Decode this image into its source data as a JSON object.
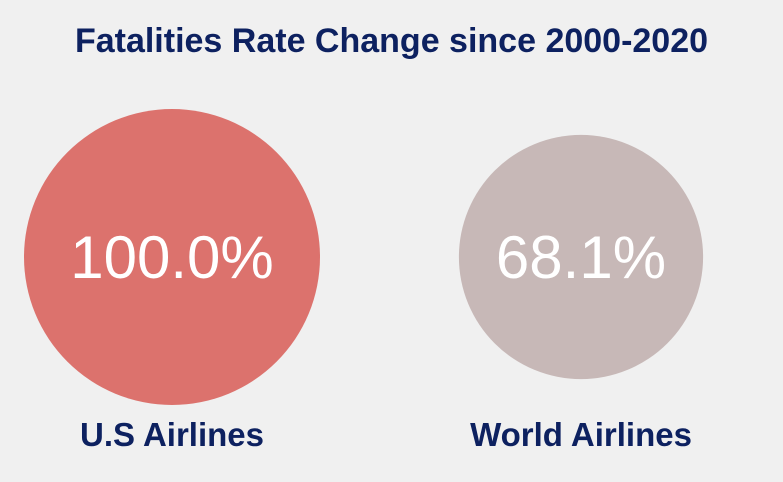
{
  "title": "Fatalities Rate Change since 2000-2020",
  "chart_data": {
    "type": "bubble",
    "title": "Fatalities Rate Change since 2000-2020",
    "categories": [
      "U.S Airlines",
      "World Airlines"
    ],
    "values": [
      100.0,
      68.1
    ],
    "value_labels": [
      "100.0%",
      "68.1%"
    ],
    "unit": "%",
    "colors": [
      "#dc726d",
      "#c7b8b7"
    ]
  }
}
